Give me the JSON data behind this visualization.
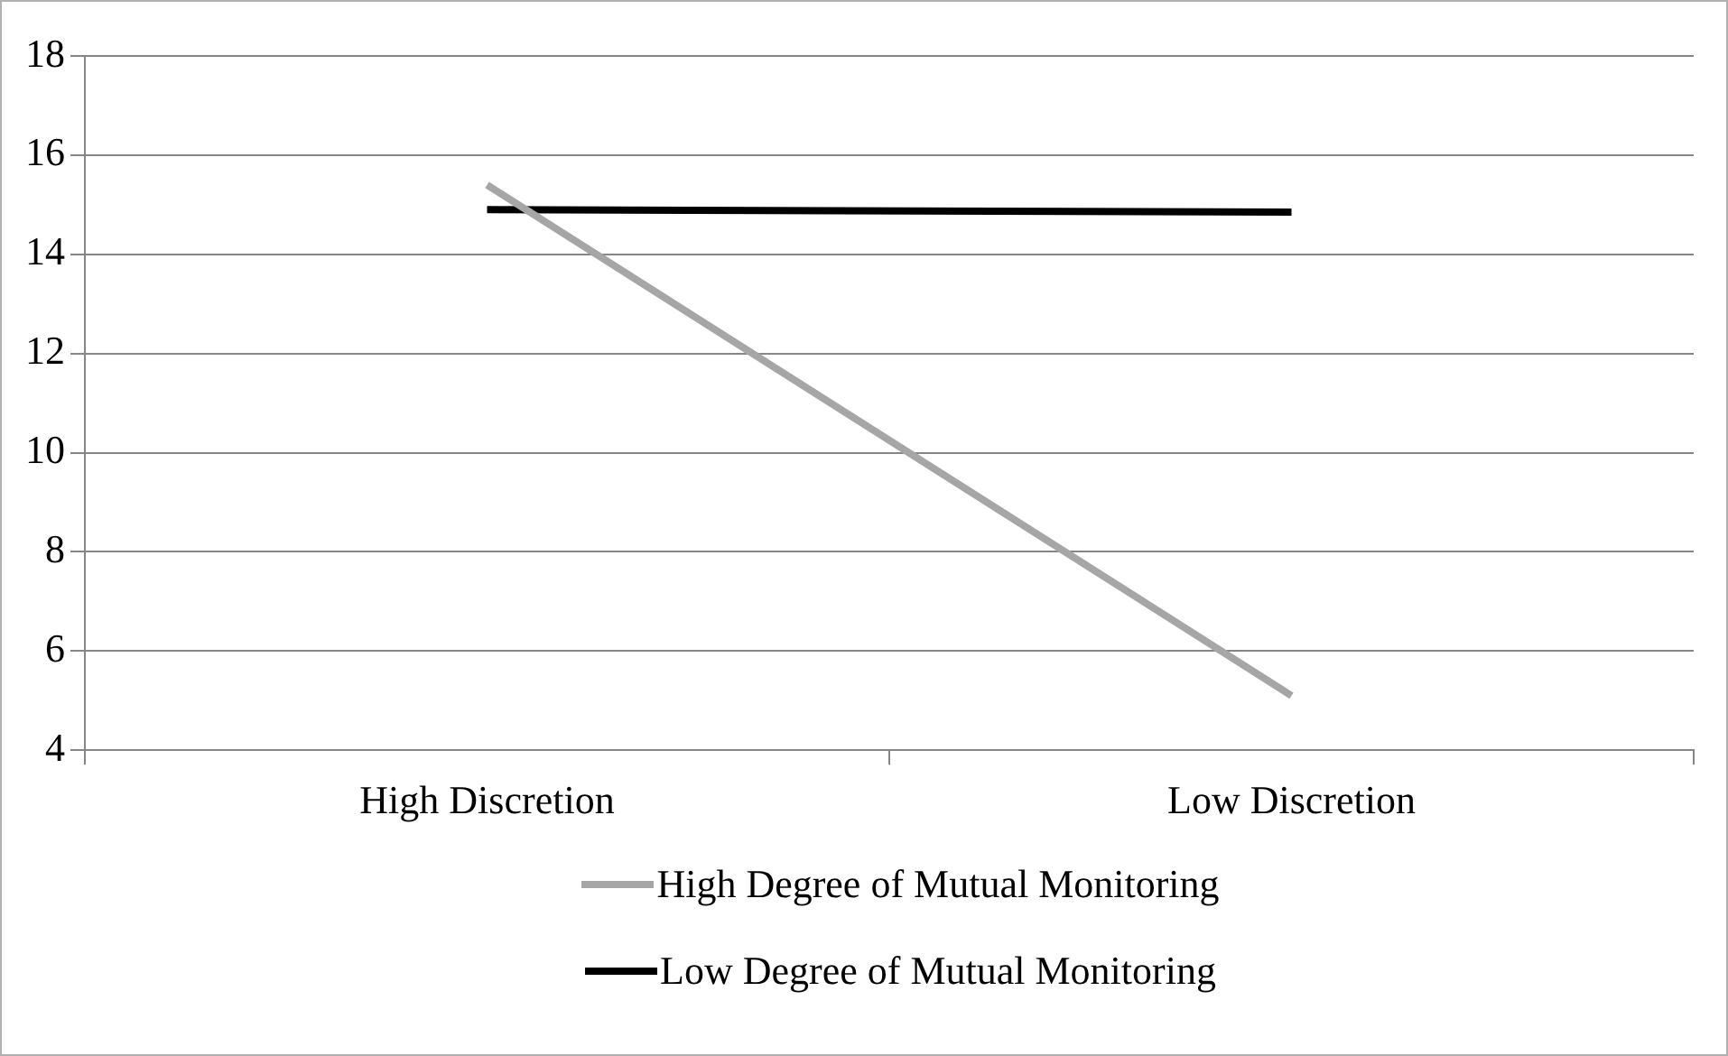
{
  "chart_data": {
    "type": "line",
    "categories": [
      "High Discretion",
      "Low Discretion"
    ],
    "series": [
      {
        "name": "High Degree of Mutual Monitoring",
        "color": "#a6a6a6",
        "values": [
          15.4,
          5.1
        ]
      },
      {
        "name": "Low Degree of Mutual Monitoring",
        "color": "#000000",
        "values": [
          14.9,
          14.85
        ]
      }
    ],
    "ylim": [
      4,
      18
    ],
    "yticks": [
      4,
      6,
      8,
      10,
      12,
      14,
      16,
      18
    ],
    "grid": "y",
    "legend": "bottom",
    "marker": "none",
    "line_style": "solid"
  }
}
